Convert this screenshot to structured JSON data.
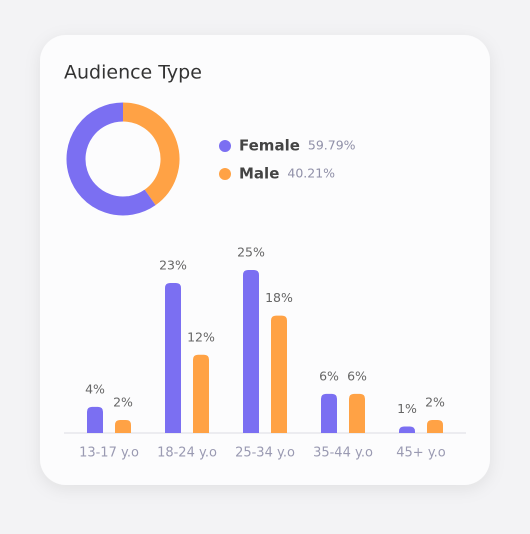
{
  "chart_data": [
    {
      "type": "pie",
      "title": "Audience Type",
      "categories": [
        "Female",
        "Male"
      ],
      "values": [
        59.79,
        40.21
      ],
      "value_labels": [
        "59.79%",
        "40.21%"
      ],
      "colors": [
        "#7b6ff2",
        "#ffa245"
      ]
    },
    {
      "type": "bar",
      "categories": [
        "13-17 y.o",
        "18-24 y.o",
        "25-34 y.o",
        "35-44 y.o",
        "45+ y.o"
      ],
      "series": [
        {
          "color": "#7b6ff2",
          "values": [
            4,
            23,
            25,
            6,
            1
          ],
          "value_labels": [
            "4%",
            "23%",
            "25%",
            "6%",
            "1%"
          ]
        },
        {
          "color": "#ffa245",
          "values": [
            2,
            12,
            18,
            6,
            2
          ],
          "value_labels": [
            "2%",
            "12%",
            "18%",
            "6%",
            "2%"
          ]
        }
      ]
    }
  ]
}
